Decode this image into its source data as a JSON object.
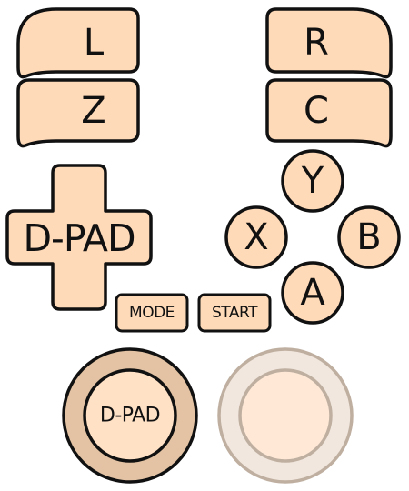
{
  "controller": {
    "colors": {
      "button_fill": "#FFDAB9",
      "outline": "#111111",
      "stick_left_outer": "#E3C3A3",
      "stick_left_inner": "#FFE1C6",
      "stick_right_outer": "#F1E7DE",
      "stick_right_inner": "#FFE8D6",
      "stick_right_outline": "#BFAFA0"
    },
    "shoulders": {
      "l": "L",
      "z": "Z",
      "r": "R",
      "c": "C"
    },
    "dpad": {
      "label": "D-PAD"
    },
    "face_buttons": {
      "y": "Y",
      "x": "X",
      "b": "B",
      "a": "A"
    },
    "system_buttons": {
      "mode": "MODE",
      "start": "START"
    },
    "sticks": {
      "left_label": "D-PAD",
      "right_label": ""
    }
  }
}
